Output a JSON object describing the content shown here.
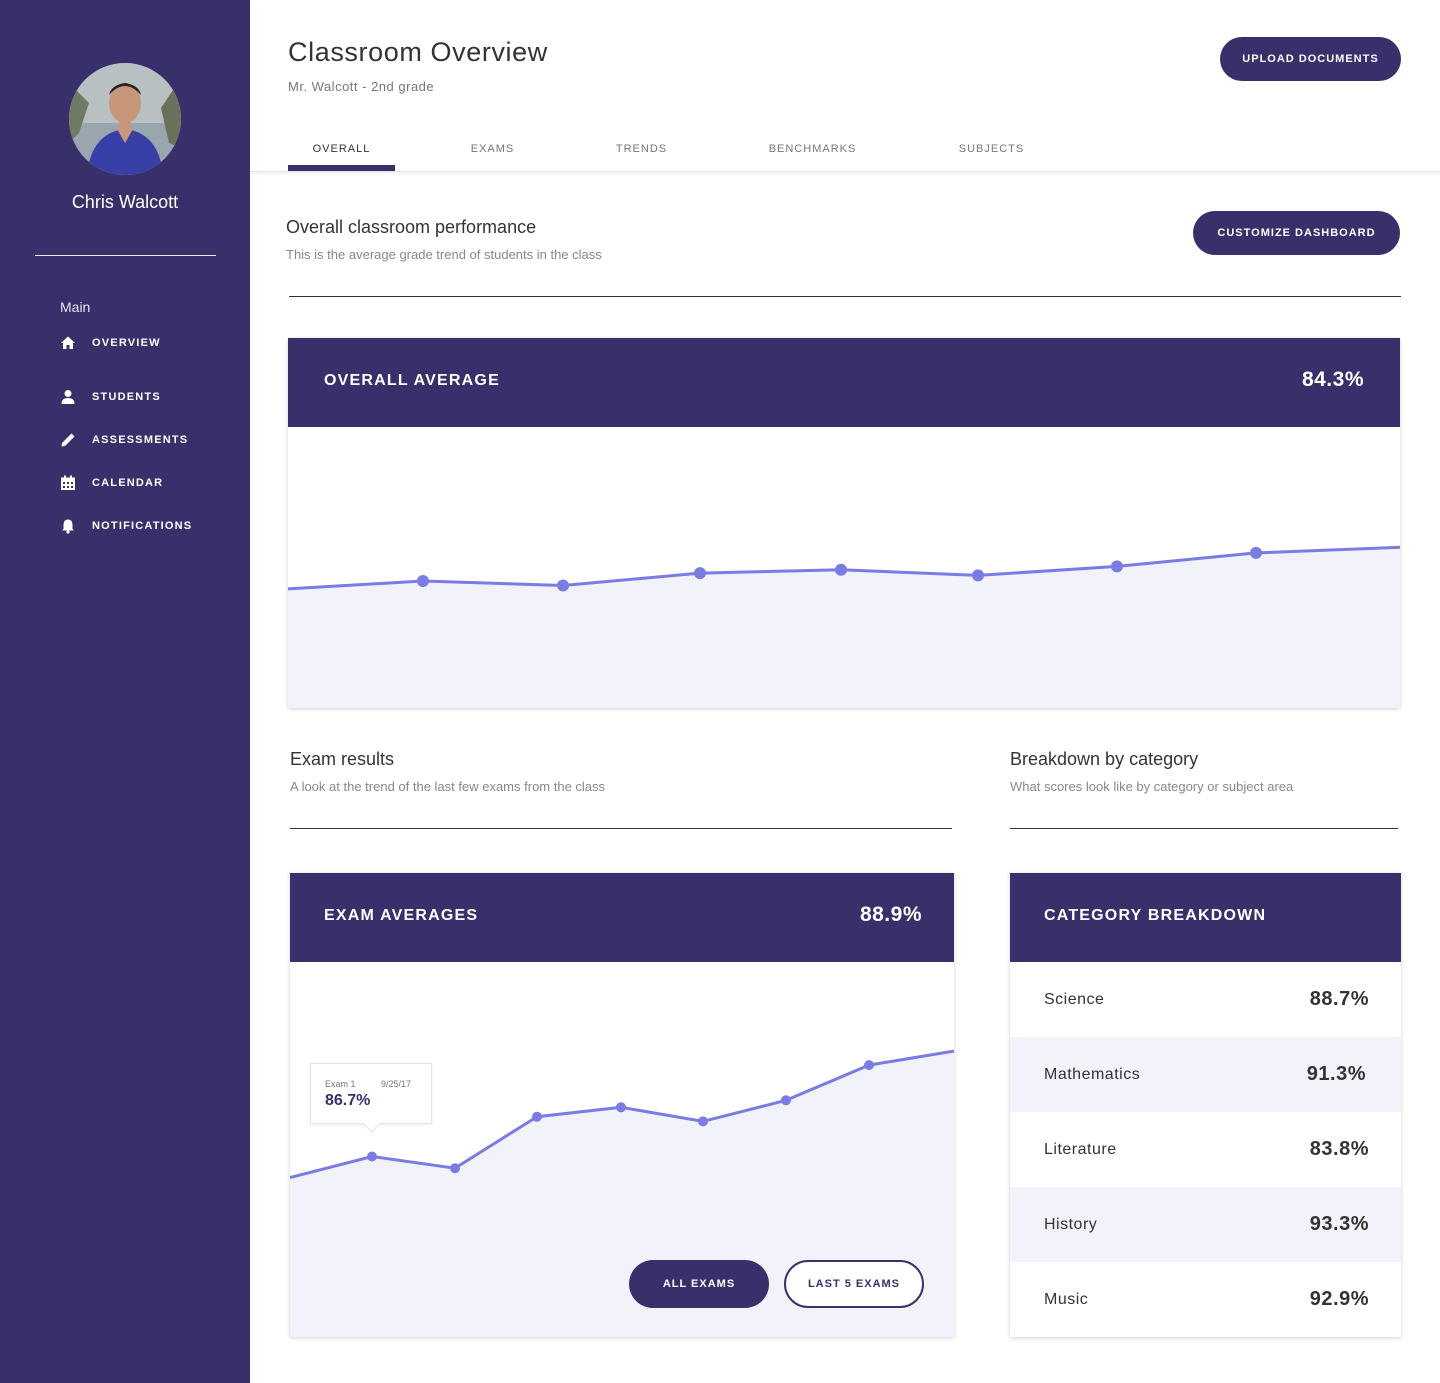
{
  "sidebar": {
    "user_name": "Chris Walcott",
    "section_label": "Main",
    "items": [
      {
        "label": "OVERVIEW",
        "icon": "home-icon"
      },
      {
        "label": "STUDENTS",
        "icon": "user-icon"
      },
      {
        "label": "ASSESSMENTS",
        "icon": "pencil-icon"
      },
      {
        "label": "CALENDAR",
        "icon": "calendar-icon"
      },
      {
        "label": "NOTIFICATIONS",
        "icon": "bell-icon"
      }
    ]
  },
  "header": {
    "title": "Classroom Overview",
    "subtitle": "Mr. Walcott - 2nd grade",
    "upload_label": "UPLOAD DOCUMENTS",
    "tabs": [
      {
        "label": "OVERALL",
        "active": true
      },
      {
        "label": "EXAMS",
        "active": false
      },
      {
        "label": "TRENDS",
        "active": false
      },
      {
        "label": "BENCHMARKS",
        "active": false
      },
      {
        "label": "SUBJECTS",
        "active": false
      }
    ]
  },
  "performance": {
    "title": "Overall classroom performance",
    "subtitle": "This is the average grade trend of students in the class",
    "customize_label": "CUSTOMIZE DASHBOARD"
  },
  "exam_results": {
    "title": "Exam results",
    "subtitle": "A look at the trend of the last few exams from the class"
  },
  "breakdown": {
    "title": "Breakdown by category",
    "subtitle": "What scores look like by category or subject area"
  },
  "overall_card": {
    "title": "OVERALL AVERAGE",
    "value": "84.3%"
  },
  "exam_card": {
    "title": "EXAM AVERAGES",
    "value": "88.9%",
    "tooltip": {
      "label": "Exam 1",
      "date": "9/25/17",
      "value": "86.7%"
    },
    "filters": {
      "all": "ALL EXAMS",
      "last5": "LAST 5 EXAMS"
    }
  },
  "category_card": {
    "title": "CATEGORY BREAKDOWN",
    "rows": [
      {
        "name": "Science",
        "value": "88.7%"
      },
      {
        "name": "Mathematics",
        "value": "91.3%"
      },
      {
        "name": "Literature",
        "value": "83.8%"
      },
      {
        "name": "History",
        "value": "93.3%"
      },
      {
        "name": "Music",
        "value": "92.9%"
      }
    ]
  },
  "colors": {
    "brand": "#37306b",
    "line": "#7b7be4",
    "area": "#f2f2fa"
  },
  "chart_data": [
    {
      "type": "area",
      "title": "OVERALL AVERAGE",
      "x": [
        0,
        1,
        2,
        3,
        4,
        5,
        6,
        7,
        8
      ],
      "values": [
        83.6,
        84.3,
        83.9,
        85.0,
        85.3,
        84.8,
        85.6,
        86.8,
        87.3
      ],
      "markers_at": [
        1,
        2,
        3,
        4,
        5,
        6,
        7
      ],
      "ylim": [
        73,
        98
      ],
      "grid": false,
      "legend": "none"
    },
    {
      "type": "area",
      "title": "EXAM AVERAGES",
      "x": [
        0,
        1,
        2,
        3,
        4,
        5,
        6,
        7,
        8
      ],
      "values": [
        85.8,
        86.7,
        86.2,
        88.4,
        88.8,
        88.2,
        89.1,
        90.6,
        91.2
      ],
      "markers_at": [
        1,
        2,
        3,
        4,
        5,
        6,
        7
      ],
      "ylim": [
        79,
        95
      ],
      "grid": false,
      "legend": "none"
    }
  ]
}
